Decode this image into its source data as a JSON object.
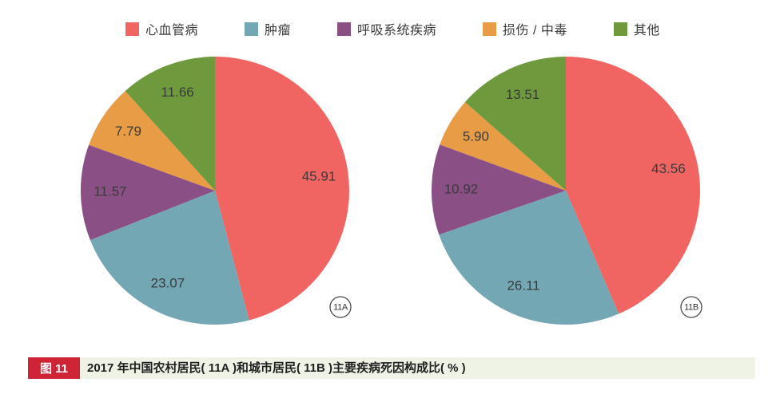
{
  "page": {
    "background": "#ffffff"
  },
  "legend": {
    "items": [
      {
        "label": "心血管病",
        "color": "#f06461"
      },
      {
        "label": "肿瘤",
        "color": "#74a7b4"
      },
      {
        "label": "呼吸系统疾病",
        "color": "#8a4f85"
      },
      {
        "label": "损伤 / 中毒",
        "color": "#e89c45"
      },
      {
        "label": "其他",
        "color": "#6e9a3d"
      }
    ]
  },
  "caption": {
    "tag": "图 11",
    "tag_bg": "#ce2436",
    "tag_color": "#ffffff",
    "text": "2017 年中国农村居民( 11A )和城市居民( 11B )主要疾病死因构成比( % )",
    "strip_bg": "#eef3e6"
  },
  "chart_data": [
    {
      "type": "pie",
      "badge": "11A",
      "categories": [
        "心血管病",
        "肿瘤",
        "呼吸系统疾病",
        "损伤 / 中毒",
        "其他"
      ],
      "values": [
        45.91,
        23.07,
        11.57,
        7.79,
        11.66
      ],
      "colors": [
        "#f06461",
        "#74a7b4",
        "#8a4f85",
        "#e89c45",
        "#6e9a3d"
      ],
      "unit": "%",
      "start_angle_deg": 0,
      "direction": "clockwise",
      "label_color": "#3a3a3a",
      "legend_position": "top"
    },
    {
      "type": "pie",
      "badge": "11B",
      "categories": [
        "心血管病",
        "肿瘤",
        "呼吸系统疾病",
        "损伤 / 中毒",
        "其他"
      ],
      "values": [
        43.56,
        26.11,
        10.92,
        5.9,
        13.51
      ],
      "colors": [
        "#f06461",
        "#74a7b4",
        "#8a4f85",
        "#e89c45",
        "#6e9a3d"
      ],
      "unit": "%",
      "start_angle_deg": 0,
      "direction": "clockwise",
      "label_color": "#3a3a3a",
      "legend_position": "top"
    }
  ]
}
